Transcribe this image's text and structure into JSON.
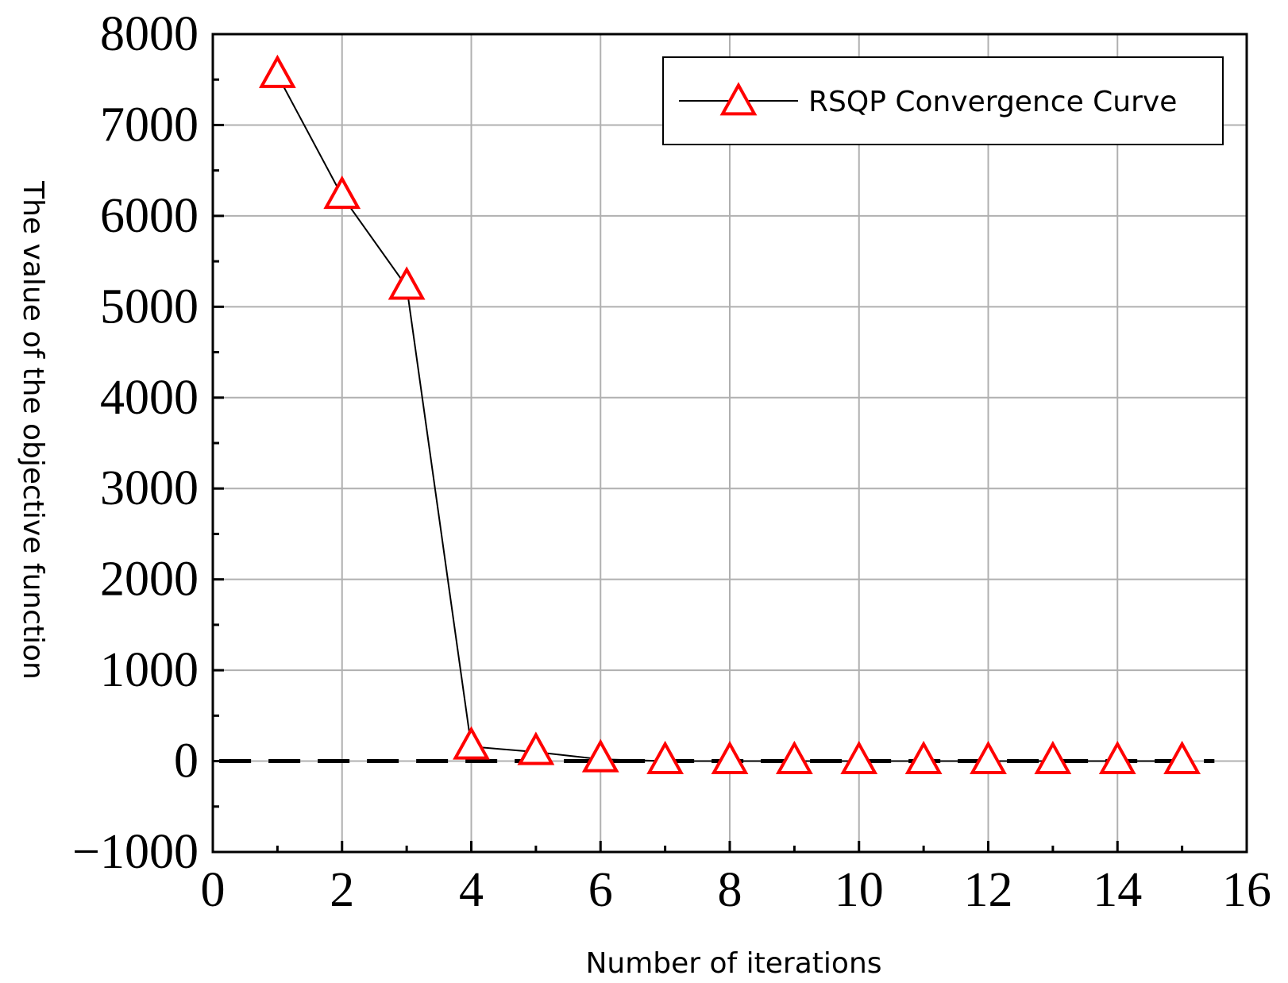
{
  "chart_data": {
    "type": "line",
    "title": "",
    "xlabel": "Number of iterations",
    "ylabel": "The value of the objective function",
    "xlim": [
      0,
      16
    ],
    "ylim": [
      -1000,
      8000
    ],
    "xticks": [
      0,
      2,
      4,
      6,
      8,
      10,
      12,
      14,
      16
    ],
    "yticks": [
      -1000,
      0,
      1000,
      2000,
      3000,
      4000,
      5000,
      6000,
      7000,
      8000
    ],
    "xtick_labels": [
      "0",
      "2",
      "4",
      "6",
      "8",
      "10",
      "12",
      "14",
      "16"
    ],
    "ytick_labels": [
      "−1000",
      "0",
      "1000",
      "2000",
      "3000",
      "4000",
      "5000",
      "6000",
      "7000",
      "8000"
    ],
    "grid": true,
    "legend_position": "top-right",
    "reference_line": {
      "y": 0,
      "style": "dashed",
      "color": "#000000"
    },
    "series": [
      {
        "name": "RSQP Convergence Curve",
        "line_color": "#000000",
        "marker": "triangle",
        "marker_color": "#ff0000",
        "x": [
          1,
          2,
          3,
          4,
          5,
          6,
          7,
          8,
          9,
          10,
          11,
          12,
          13,
          14,
          15
        ],
        "y": [
          7550,
          6220,
          5220,
          160,
          100,
          20,
          0,
          0,
          0,
          0,
          0,
          0,
          0,
          0,
          0
        ]
      }
    ]
  }
}
